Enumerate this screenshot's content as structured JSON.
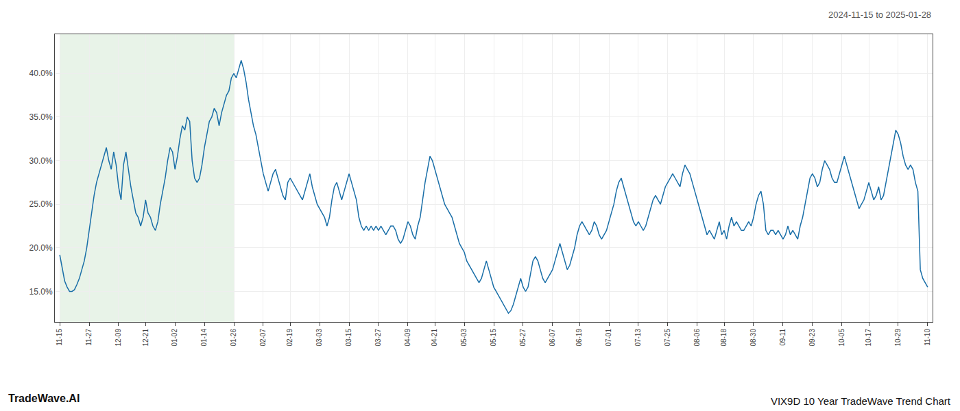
{
  "chart_data": {
    "type": "line",
    "title": "VIX9D 10 Year TradeWave Trend Chart",
    "subtitle": "2024-11-15 to 2025-01-28",
    "annotations": [
      "TradeWave.AI"
    ],
    "color": "#1a6fa8",
    "grid": true,
    "shade": {
      "from": "11-15",
      "to": "01-26",
      "color": "#d6ead6"
    },
    "ylim": [
      11.5,
      44.5
    ],
    "yticks": [
      {
        "value": 15.0,
        "label": "15.0%"
      },
      {
        "value": 20.0,
        "label": "20.0%"
      },
      {
        "value": 25.0,
        "label": "25.0%"
      },
      {
        "value": 30.0,
        "label": "30.0%"
      },
      {
        "value": 35.0,
        "label": "35.0%"
      },
      {
        "value": 40.0,
        "label": "40.0%"
      }
    ],
    "categories": [
      "11-15",
      null,
      null,
      null,
      null,
      null,
      null,
      null,
      null,
      null,
      null,
      null,
      "11-27",
      null,
      null,
      null,
      null,
      null,
      null,
      null,
      null,
      null,
      null,
      null,
      "12-09",
      null,
      null,
      null,
      null,
      null,
      null,
      null,
      null,
      null,
      null,
      "12-21",
      null,
      null,
      null,
      null,
      null,
      null,
      null,
      null,
      null,
      null,
      null,
      "01-02",
      null,
      null,
      null,
      null,
      null,
      null,
      null,
      null,
      null,
      null,
      null,
      "01-14",
      null,
      null,
      null,
      null,
      null,
      null,
      null,
      null,
      null,
      null,
      null,
      "01-26",
      null,
      null,
      null,
      null,
      null,
      null,
      null,
      null,
      null,
      null,
      null,
      "02-07",
      null,
      null,
      null,
      null,
      null,
      null,
      null,
      null,
      null,
      null,
      "02-19",
      null,
      null,
      null,
      null,
      null,
      null,
      null,
      null,
      null,
      null,
      null,
      "03-03",
      null,
      null,
      null,
      null,
      null,
      null,
      null,
      null,
      null,
      null,
      null,
      "03-15",
      null,
      null,
      null,
      null,
      null,
      null,
      null,
      null,
      null,
      null,
      null,
      "03-27",
      null,
      null,
      null,
      null,
      null,
      null,
      null,
      null,
      null,
      null,
      null,
      "04-09",
      null,
      null,
      null,
      null,
      null,
      null,
      null,
      null,
      null,
      null,
      "04-21",
      null,
      null,
      null,
      null,
      null,
      null,
      null,
      null,
      null,
      null,
      null,
      "05-03",
      null,
      null,
      null,
      null,
      null,
      null,
      null,
      null,
      null,
      null,
      null,
      "05-15",
      null,
      null,
      null,
      null,
      null,
      null,
      null,
      null,
      null,
      null,
      null,
      "05-27",
      null,
      null,
      null,
      null,
      null,
      null,
      null,
      null,
      null,
      null,
      null,
      "06-07",
      null,
      null,
      null,
      null,
      null,
      null,
      null,
      null,
      null,
      null,
      "06-19",
      null,
      null,
      null,
      null,
      null,
      null,
      null,
      null,
      null,
      null,
      null,
      "07-01",
      null,
      null,
      null,
      null,
      null,
      null,
      null,
      null,
      null,
      null,
      null,
      "07-13",
      null,
      null,
      null,
      null,
      null,
      null,
      null,
      null,
      null,
      null,
      null,
      "07-25",
      null,
      null,
      null,
      null,
      null,
      null,
      null,
      null,
      null,
      null,
      null,
      "08-06",
      null,
      null,
      null,
      null,
      null,
      null,
      null,
      null,
      null,
      null,
      "08-18",
      null,
      null,
      null,
      null,
      null,
      null,
      null,
      null,
      null,
      null,
      null,
      "08-30",
      null,
      null,
      null,
      null,
      null,
      null,
      null,
      null,
      null,
      null,
      null,
      "09-11",
      null,
      null,
      null,
      null,
      null,
      null,
      null,
      null,
      null,
      null,
      null,
      "09-23",
      null,
      null,
      null,
      null,
      null,
      null,
      null,
      null,
      null,
      null,
      null,
      "10-05",
      null,
      null,
      null,
      null,
      null,
      null,
      null,
      null,
      null,
      null,
      "10-17",
      null,
      null,
      null,
      null,
      null,
      null,
      null,
      null,
      null,
      null,
      null,
      "10-29",
      null,
      null,
      null,
      null,
      null,
      null,
      null,
      null,
      null,
      null,
      null,
      "11-10"
    ],
    "values": [
      19.2,
      17.8,
      16.2,
      15.5,
      15.0,
      15.0,
      15.2,
      15.8,
      16.5,
      17.5,
      18.5,
      20.0,
      22.0,
      24.0,
      26.0,
      27.5,
      28.5,
      29.5,
      30.5,
      31.5,
      30.0,
      29.0,
      31.0,
      29.5,
      27.0,
      25.5,
      29.5,
      31.0,
      29.0,
      27.0,
      25.5,
      24.0,
      23.5,
      22.5,
      23.5,
      25.5,
      24.0,
      23.5,
      22.5,
      22.0,
      23.0,
      25.0,
      26.5,
      28.0,
      30.0,
      31.5,
      31.0,
      29.0,
      30.5,
      32.5,
      34.0,
      33.5,
      35.0,
      34.5,
      30.0,
      28.0,
      27.5,
      28.0,
      29.5,
      31.5,
      33.0,
      34.5,
      35.0,
      36.0,
      35.5,
      34.0,
      35.5,
      36.5,
      37.5,
      38.0,
      39.5,
      40.0,
      39.5,
      40.5,
      41.5,
      40.5,
      39.0,
      37.0,
      35.5,
      34.0,
      33.0,
      31.5,
      30.0,
      28.5,
      27.5,
      26.5,
      27.5,
      28.5,
      29.0,
      28.0,
      27.0,
      26.0,
      25.5,
      27.5,
      28.0,
      27.5,
      27.0,
      26.5,
      26.0,
      25.5,
      26.5,
      27.5,
      28.5,
      27.0,
      26.0,
      25.0,
      24.5,
      24.0,
      23.5,
      22.5,
      23.5,
      25.5,
      27.0,
      27.5,
      26.5,
      25.5,
      26.5,
      27.5,
      28.5,
      27.5,
      26.5,
      25.5,
      23.5,
      22.5,
      22.0,
      22.5,
      22.0,
      22.5,
      22.0,
      22.5,
      22.0,
      22.5,
      22.0,
      21.5,
      22.0,
      22.5,
      22.5,
      22.0,
      21.0,
      20.5,
      21.0,
      22.0,
      23.0,
      22.5,
      21.5,
      21.0,
      22.5,
      23.5,
      25.5,
      27.5,
      29.0,
      30.5,
      30.0,
      29.0,
      28.0,
      27.0,
      26.0,
      25.0,
      24.5,
      24.0,
      23.5,
      22.5,
      21.5,
      20.5,
      20.0,
      19.5,
      18.5,
      18.0,
      17.5,
      17.0,
      16.5,
      16.0,
      16.5,
      17.5,
      18.5,
      17.5,
      16.5,
      15.5,
      15.0,
      14.5,
      14.0,
      13.5,
      13.0,
      12.5,
      12.8,
      13.5,
      14.5,
      15.5,
      16.5,
      15.5,
      15.0,
      15.5,
      17.0,
      18.5,
      19.0,
      18.5,
      17.5,
      16.5,
      16.0,
      16.5,
      17.0,
      17.5,
      18.5,
      19.5,
      20.5,
      19.5,
      18.5,
      17.5,
      18.0,
      19.0,
      20.0,
      21.5,
      22.5,
      23.0,
      22.5,
      22.0,
      21.5,
      22.0,
      23.0,
      22.5,
      21.5,
      21.0,
      21.5,
      22.0,
      23.0,
      24.0,
      25.0,
      26.5,
      27.5,
      28.0,
      27.0,
      26.0,
      25.0,
      24.0,
      23.0,
      22.5,
      23.0,
      22.5,
      22.0,
      22.5,
      23.5,
      24.5,
      25.5,
      26.0,
      25.5,
      25.0,
      26.0,
      27.0,
      27.5,
      28.0,
      28.5,
      28.0,
      27.5,
      27.0,
      28.5,
      29.5,
      29.0,
      28.5,
      27.5,
      26.5,
      25.5,
      24.5,
      23.5,
      22.5,
      21.5,
      22.0,
      21.5,
      21.0,
      22.0,
      23.0,
      21.5,
      22.0,
      21.0,
      22.5,
      23.5,
      22.5,
      23.0,
      22.5,
      22.0,
      22.0,
      22.5,
      23.0,
      22.5,
      23.5,
      25.0,
      26.0,
      26.5,
      25.0,
      22.0,
      21.5,
      22.0,
      22.0,
      21.5,
      22.0,
      21.5,
      21.0,
      21.5,
      22.5,
      21.5,
      22.0,
      21.5,
      21.0,
      22.5,
      23.5,
      25.0,
      26.5,
      28.0,
      28.5,
      28.0,
      27.0,
      27.5,
      29.0,
      30.0,
      29.5,
      29.0,
      28.0,
      27.5,
      27.5,
      28.5,
      29.5,
      30.5,
      29.5,
      28.5,
      27.5,
      26.5,
      25.5,
      24.5,
      25.0,
      25.5,
      26.5,
      27.5,
      26.5,
      25.5,
      26.0,
      27.0,
      25.5,
      26.0,
      27.5,
      29.0,
      30.5,
      32.0,
      33.5,
      33.0,
      32.0,
      30.5,
      29.5,
      29.0,
      29.5,
      29.0,
      27.5,
      26.5,
      17.5,
      16.5,
      16.0,
      15.5
    ]
  }
}
